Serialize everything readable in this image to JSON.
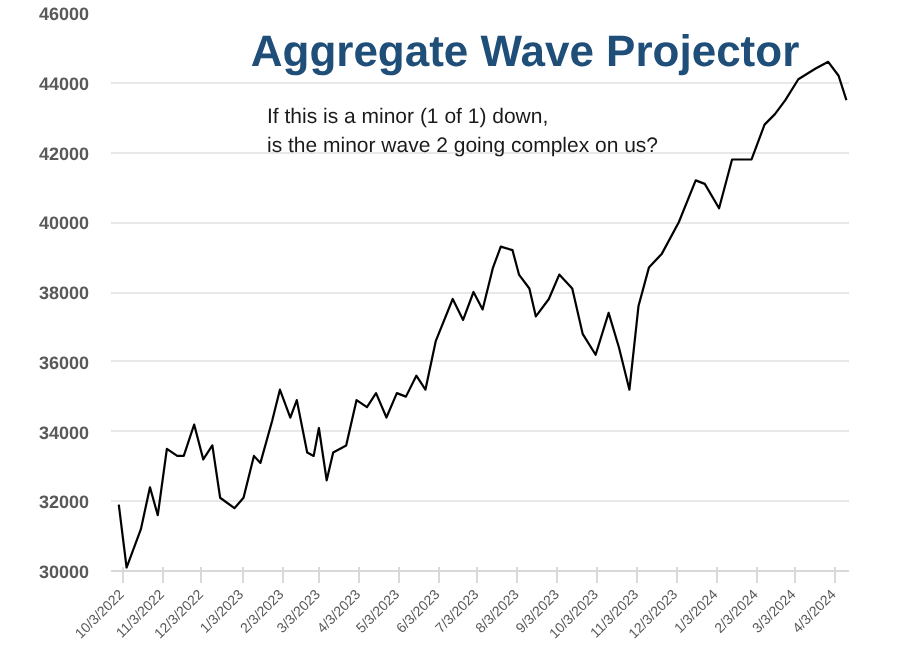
{
  "chart_data": {
    "type": "line",
    "title": "Aggregate Wave Projector",
    "annotations": [
      "If this is a minor (1 of 1) down,\nis the minor wave 2 going complex on us?"
    ],
    "x": [
      "2022-09-30",
      "2022-10-04",
      "2022-10-06",
      "2022-10-17",
      "2022-10-24",
      "2022-10-30",
      "2022-11-06",
      "2022-11-14",
      "2022-11-19",
      "2022-11-27",
      "2022-12-04",
      "2022-12-11",
      "2022-12-17",
      "2022-12-28",
      "2023-01-04",
      "2023-01-12",
      "2023-01-17",
      "2023-01-26",
      "2023-02-01",
      "2023-02-09",
      "2023-02-14",
      "2023-02-22",
      "2023-02-27",
      "2023-03-03",
      "2023-03-09",
      "2023-03-14",
      "2023-03-24",
      "2023-04-01",
      "2023-04-09",
      "2023-04-16",
      "2023-04-24",
      "2023-05-02",
      "2023-05-09",
      "2023-05-17",
      "2023-05-24",
      "2023-06-01",
      "2023-06-14",
      "2023-06-22",
      "2023-06-30",
      "2023-07-07",
      "2023-07-15",
      "2023-07-21",
      "2023-07-30",
      "2023-08-04",
      "2023-08-12",
      "2023-08-17",
      "2023-08-27",
      "2023-09-04",
      "2023-09-14",
      "2023-09-22",
      "2023-10-02",
      "2023-10-12",
      "2023-10-20",
      "2023-10-28",
      "2023-11-04",
      "2023-11-12",
      "2023-11-22",
      "2023-12-05",
      "2023-12-18",
      "2023-12-25",
      "2024-01-05",
      "2024-01-15",
      "2024-01-30",
      "2024-02-09",
      "2024-02-17",
      "2024-02-25",
      "2024-03-06",
      "2024-03-19",
      "2024-03-29",
      "2024-04-06",
      "2024-04-12"
    ],
    "series": [
      {
        "color": "#000000",
        "values": [
          31900,
          30700,
          30100,
          31200,
          32400,
          31600,
          33500,
          33300,
          33300,
          34200,
          33200,
          33600,
          32100,
          31800,
          32100,
          33300,
          33100,
          34300,
          35200,
          34400,
          34900,
          33400,
          33300,
          34100,
          32600,
          33400,
          33600,
          34900,
          34700,
          35100,
          34400,
          35100,
          35000,
          35600,
          35200,
          36600,
          37800,
          37200,
          38000,
          37500,
          38700,
          39300,
          39200,
          38500,
          38100,
          37300,
          37800,
          38500,
          38100,
          36800,
          36200,
          37400,
          36400,
          35200,
          37600,
          38700,
          39100,
          40000,
          41200,
          41100,
          40400,
          41800,
          41800,
          42800,
          43100,
          43500,
          44100,
          44400,
          44600,
          44200,
          43500
        ]
      }
    ],
    "xlim": [
      "2022-09-24",
      "2024-04-14"
    ],
    "xticks": [
      {
        "value": "2022-10-03",
        "label": "10/3/2022"
      },
      {
        "value": "2022-11-03",
        "label": "11/3/2022"
      },
      {
        "value": "2022-12-03",
        "label": "12/3/2022"
      },
      {
        "value": "2023-01-03",
        "label": "1/3/2023"
      },
      {
        "value": "2023-02-03",
        "label": "2/3/2023"
      },
      {
        "value": "2023-03-03",
        "label": "3/3/2023"
      },
      {
        "value": "2023-04-03",
        "label": "4/3/2023"
      },
      {
        "value": "2023-05-03",
        "label": "5/3/2023"
      },
      {
        "value": "2023-06-03",
        "label": "6/3/2023"
      },
      {
        "value": "2023-07-03",
        "label": "7/3/2023"
      },
      {
        "value": "2023-08-03",
        "label": "8/3/2023"
      },
      {
        "value": "2023-09-03",
        "label": "9/3/2023"
      },
      {
        "value": "2023-10-03",
        "label": "10/3/2023"
      },
      {
        "value": "2023-11-03",
        "label": "11/3/2023"
      },
      {
        "value": "2023-12-03",
        "label": "12/3/2023"
      },
      {
        "value": "2024-01-03",
        "label": "1/3/2024"
      },
      {
        "value": "2024-02-03",
        "label": "2/3/2024"
      },
      {
        "value": "2024-03-03",
        "label": "3/3/2024"
      },
      {
        "value": "2024-04-03",
        "label": "4/3/2024"
      }
    ],
    "ylim": [
      30000,
      46000
    ],
    "yticks": [
      30000,
      32000,
      34000,
      36000,
      38000,
      40000,
      42000,
      44000,
      46000
    ],
    "grid": "y",
    "marker": "none",
    "line_style": "solid"
  }
}
